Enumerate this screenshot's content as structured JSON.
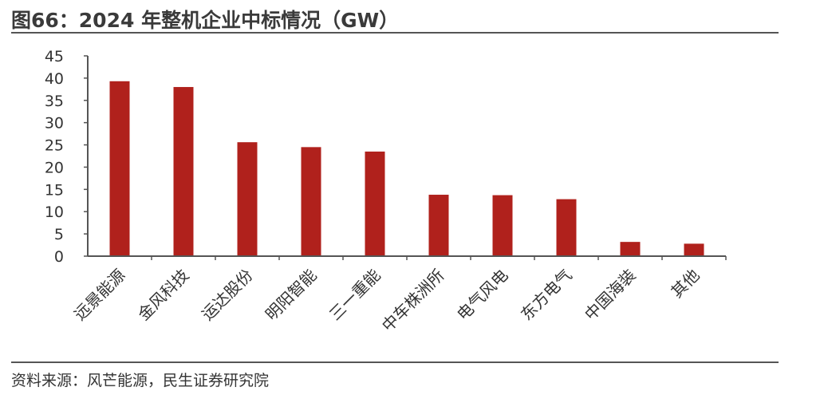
{
  "header": {
    "title": "图66：2024 年整机企业中标情况（GW）"
  },
  "footer": {
    "source": "资料来源：风芒能源，民生证券研究院"
  },
  "colors": {
    "bar": "#B0211C",
    "axis": "#555555"
  },
  "chart_data": {
    "type": "bar",
    "categories": [
      "远景能源",
      "金风科技",
      "运达股份",
      "明阳智能",
      "三一重能",
      "中车株洲所",
      "电气风电",
      "东方电气",
      "中国海装",
      "其他"
    ],
    "values": [
      39.3,
      38,
      25.6,
      24.5,
      23.5,
      13.8,
      13.7,
      12.8,
      3.2,
      2.8
    ],
    "yticks": [
      0,
      5,
      10,
      15,
      20,
      25,
      30,
      35,
      40,
      45
    ],
    "ylim": [
      0,
      45
    ],
    "title": "",
    "xlabel": "",
    "ylabel": "",
    "grid": false,
    "legend": "none"
  }
}
